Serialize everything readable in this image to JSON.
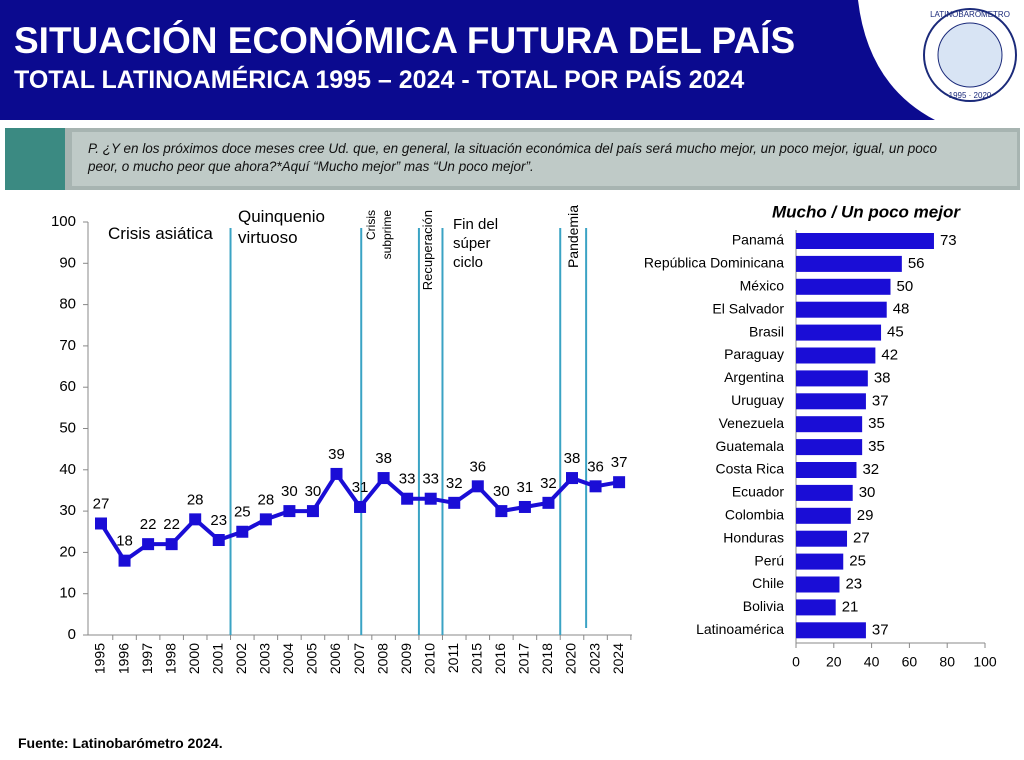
{
  "header": {
    "title": "SITUACIÓN ECONÓMICA FUTURA DEL PAÍS",
    "subtitle": "TOTAL LATINOAMÉRICA 1995 – 2024 - TOTAL POR PAÍS 2024",
    "logo_text": "LATINOBARÓMETRO",
    "logo_years": "1995 · 2020"
  },
  "question": "P. ¿Y en los próximos doce meses cree Ud. que, en general, la situación económica del país será mucho mejor, un poco mejor, igual, un poco peor, o mucho peor que ahora?*Aquí “Mucho mejor” mas “Un poco mejor”.",
  "chart_data": [
    {
      "type": "line",
      "color": "#1a0dd6",
      "categories": [
        "1995",
        "1996",
        "1997",
        "1998",
        "2000",
        "2001",
        "2002",
        "2003",
        "2004",
        "2005",
        "2006",
        "2007",
        "2008",
        "2009",
        "2010",
        "2011",
        "2015",
        "2016",
        "2017",
        "2018",
        "2020",
        "2023",
        "2024"
      ],
      "values": [
        27,
        18,
        22,
        22,
        28,
        23,
        25,
        28,
        30,
        30,
        39,
        31,
        38,
        33,
        33,
        32,
        36,
        30,
        31,
        32,
        38,
        36,
        37
      ],
      "ylim": [
        0,
        100
      ],
      "yticks": [
        0,
        10,
        20,
        30,
        40,
        50,
        60,
        70,
        80,
        90,
        100
      ],
      "annotations": [
        "Crisis asiática",
        "Quinquenio virtuoso",
        "Crisis subprime",
        "Recuperación",
        "Fin del súper ciclo",
        "Pandemia"
      ]
    },
    {
      "type": "bar",
      "orientation": "horizontal",
      "title": "Mucho /  Un poco mejor",
      "color": "#1a0dd6",
      "categories": [
        "Panamá",
        "República Dominicana",
        "México",
        "El Salvador",
        "Brasil",
        "Paraguay",
        "Argentina",
        "Uruguay",
        "Venezuela",
        "Guatemala",
        "Costa Rica",
        "Ecuador",
        "Colombia",
        "Honduras",
        "Perú",
        "Chile",
        "Bolivia",
        "Latinoamérica"
      ],
      "values": [
        73,
        56,
        50,
        48,
        45,
        42,
        38,
        37,
        35,
        35,
        32,
        30,
        29,
        27,
        25,
        23,
        21,
        37
      ],
      "xlim": [
        0,
        100
      ],
      "xticks": [
        0,
        20,
        40,
        60,
        80,
        100
      ]
    }
  ],
  "source": "Fuente: Latinobarómetro 2024."
}
